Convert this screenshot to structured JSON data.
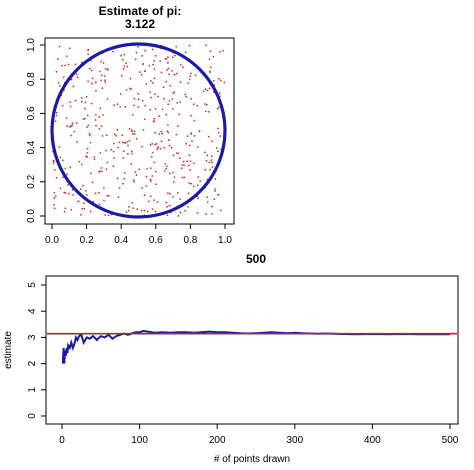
{
  "chart_data": [
    {
      "type": "scatter",
      "title_line1": "Estimate of pi:",
      "title_line2": "3.122",
      "xlabel": "",
      "ylabel": "",
      "xlim": [
        0,
        1
      ],
      "ylim": [
        0,
        1
      ],
      "xticks": [
        0.0,
        0.2,
        0.4,
        0.6,
        0.8,
        1.0
      ],
      "xtick_labels": [
        "0.0",
        "0.2",
        "0.4",
        "0.6",
        "0.8",
        "1.0"
      ],
      "yticks": [
        0.0,
        0.2,
        0.4,
        0.6,
        0.8,
        1.0
      ],
      "ytick_labels": [
        "0.0",
        "0.2",
        "0.4",
        "0.6",
        "0.8",
        "1.0"
      ],
      "n_points": 500,
      "point_color": "#d03030",
      "circle": {
        "center": [
          0.5,
          0.5
        ],
        "radius": 0.5,
        "color": "#1a1aa8"
      },
      "grid": false
    },
    {
      "type": "line",
      "title": "500",
      "xlabel": "# of points drawn",
      "ylabel": "estimate",
      "xlim": [
        0,
        520
      ],
      "ylim": [
        0,
        5
      ],
      "xticks": [
        0,
        100,
        200,
        300,
        400,
        500
      ],
      "xtick_labels": [
        "0",
        "100",
        "200",
        "300",
        "400",
        "500"
      ],
      "yticks": [
        0,
        1,
        2,
        3,
        4,
        5
      ],
      "ytick_labels": [
        "0",
        "1",
        "2",
        "3",
        "4",
        "5"
      ],
      "grid": false,
      "series": [
        {
          "color": "#1a1aa8",
          "x": [
            1,
            2,
            3,
            4,
            5,
            6,
            7,
            8,
            10,
            12,
            14,
            16,
            18,
            20,
            22,
            25,
            28,
            32,
            36,
            40,
            45,
            50,
            55,
            60,
            65,
            70,
            75,
            80,
            85,
            90,
            95,
            100,
            105,
            110,
            120,
            130,
            140,
            150,
            160,
            170,
            180,
            190,
            200,
            210,
            220,
            230,
            240,
            250,
            260,
            270,
            280,
            290,
            300,
            310,
            320,
            330,
            340,
            350,
            360,
            380,
            400,
            420,
            440,
            460,
            480,
            500
          ],
          "y": [
            2.0,
            2.6,
            2.0,
            2.5,
            2.3,
            2.6,
            2.4,
            2.7,
            2.6,
            2.8,
            2.6,
            2.75,
            3.0,
            2.9,
            3.05,
            3.1,
            2.8,
            3.0,
            2.95,
            3.05,
            2.9,
            3.05,
            3.0,
            3.1,
            2.95,
            3.05,
            3.1,
            3.15,
            3.1,
            3.15,
            3.2,
            3.2,
            3.25,
            3.22,
            3.18,
            3.2,
            3.18,
            3.2,
            3.2,
            3.18,
            3.2,
            3.22,
            3.2,
            3.2,
            3.18,
            3.16,
            3.15,
            3.16,
            3.18,
            3.2,
            3.18,
            3.16,
            3.18,
            3.16,
            3.15,
            3.14,
            3.15,
            3.14,
            3.13,
            3.12,
            3.13,
            3.12,
            3.13,
            3.12,
            3.12,
            3.122
          ]
        }
      ],
      "reference_line": {
        "y": 3.14159,
        "color": "#c0202a"
      }
    }
  ]
}
